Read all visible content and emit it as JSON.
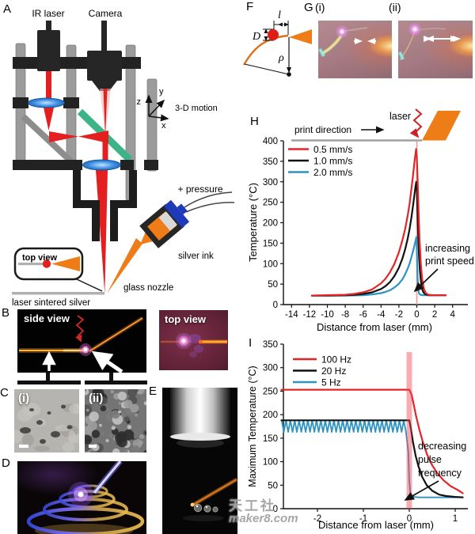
{
  "panels": {
    "A": {
      "label": "A",
      "ir_laser": "IR laser",
      "camera": "Camera",
      "motion_label": "3-D motion",
      "axes": {
        "x": "x",
        "y": "y",
        "z": "z"
      },
      "pressure": "+ pressure",
      "silver_ink": "silver ink",
      "glass_nozzle": "glass nozzle",
      "inset_title": "top view",
      "substrate": "laser sintered silver"
    },
    "B": {
      "label": "B",
      "side_view_title": "side view",
      "top_view_title": "top view"
    },
    "C": {
      "label": "C",
      "i": "(i)",
      "ii": "(ii)"
    },
    "D": {
      "label": "D"
    },
    "E": {
      "label": "E"
    },
    "F": {
      "label": "F",
      "dims": {
        "l": "l",
        "D": "D",
        "rho": "ρ"
      }
    },
    "G": {
      "label": "G",
      "i": "(i)",
      "ii": "(ii)"
    },
    "H": {
      "label": "H"
    },
    "I": {
      "label": "I"
    }
  },
  "watermark": {
    "line1": "天工社",
    "line2": "maker8.com"
  },
  "chart_data": [
    {
      "id": "H",
      "type": "line",
      "xlabel": "Distance from laser (mm)",
      "ylabel": "Temperature (°C)",
      "xlim": [
        -14.9,
        5.4
      ],
      "ylim": [
        0,
        400
      ],
      "xticks": [
        -14,
        -12,
        -10,
        -8,
        -6,
        -4,
        -2,
        0,
        2,
        4
      ],
      "yticks": [
        0,
        50,
        100,
        150,
        200,
        250,
        300,
        350,
        400
      ],
      "grid": false,
      "legend_position": "upper-left",
      "laser_line_x": 0,
      "decorations": {
        "print_direction": "print direction",
        "laser": "laser"
      },
      "note_lines": [
        "increasing",
        "print speed"
      ],
      "baseline_temp_C": 22,
      "series": [
        {
          "name": "2.0 mm/s",
          "color": "#2e93c0",
          "points": [
            [
              -11.8,
              22
            ],
            [
              -10,
              22
            ],
            [
              -8,
              22
            ],
            [
              -6,
              23
            ],
            [
              -5,
              25
            ],
            [
              -4,
              28
            ],
            [
              -3.5,
              31
            ],
            [
              -3,
              35
            ],
            [
              -2.5,
              42
            ],
            [
              -2,
              51
            ],
            [
              -1.6,
              62
            ],
            [
              -1.3,
              74
            ],
            [
              -1,
              89
            ],
            [
              -0.8,
              101
            ],
            [
              -0.6,
              116
            ],
            [
              -0.45,
              128
            ],
            [
              -0.3,
              141
            ],
            [
              -0.15,
              155
            ],
            [
              -0.04,
              165
            ],
            [
              0.02,
              120
            ],
            [
              0.08,
              70
            ],
            [
              0.15,
              40
            ],
            [
              0.25,
              27
            ],
            [
              0.4,
              24
            ],
            [
              0.7,
              23
            ],
            [
              1.2,
              23
            ],
            [
              2,
              23
            ],
            [
              3.3,
              23
            ]
          ]
        },
        {
          "name": "1.0 mm/s",
          "color": "#111111",
          "points": [
            [
              -11.8,
              22
            ],
            [
              -10,
              22
            ],
            [
              -8,
              23
            ],
            [
              -7,
              24
            ],
            [
              -6,
              26
            ],
            [
              -5,
              30
            ],
            [
              -4,
              38
            ],
            [
              -3.5,
              45
            ],
            [
              -3,
              55
            ],
            [
              -2.5,
              70
            ],
            [
              -2,
              90
            ],
            [
              -1.6,
              113
            ],
            [
              -1.3,
              135
            ],
            [
              -1,
              163
            ],
            [
              -0.8,
              186
            ],
            [
              -0.6,
              213
            ],
            [
              -0.45,
              237
            ],
            [
              -0.3,
              262
            ],
            [
              -0.15,
              288
            ],
            [
              -0.06,
              300
            ],
            [
              0,
              284
            ],
            [
              0.08,
              225
            ],
            [
              0.16,
              168
            ],
            [
              0.25,
              118
            ],
            [
              0.35,
              80
            ],
            [
              0.5,
              48
            ],
            [
              0.65,
              34
            ],
            [
              0.8,
              28
            ],
            [
              1,
              25
            ],
            [
              1.3,
              23
            ],
            [
              2,
              23
            ],
            [
              3.3,
              23
            ]
          ]
        },
        {
          "name": "0.5 mm/s",
          "color": "#e32528",
          "points": [
            [
              -11.8,
              22
            ],
            [
              -10,
              23
            ],
            [
              -8,
              24
            ],
            [
              -7,
              26
            ],
            [
              -6,
              30
            ],
            [
              -5,
              37
            ],
            [
              -4,
              52
            ],
            [
              -3.5,
              63
            ],
            [
              -3,
              79
            ],
            [
              -2.5,
              100
            ],
            [
              -2,
              128
            ],
            [
              -1.6,
              158
            ],
            [
              -1.3,
              185
            ],
            [
              -1,
              220
            ],
            [
              -0.8,
              248
            ],
            [
              -0.6,
              283
            ],
            [
              -0.45,
              310
            ],
            [
              -0.3,
              341
            ],
            [
              -0.15,
              368
            ],
            [
              -0.08,
              380
            ],
            [
              0,
              362
            ],
            [
              0.1,
              300
            ],
            [
              0.2,
              222
            ],
            [
              0.3,
              160
            ],
            [
              0.45,
              98
            ],
            [
              0.6,
              62
            ],
            [
              0.8,
              38
            ],
            [
              1,
              28
            ],
            [
              1.3,
              24
            ],
            [
              1.8,
              23
            ],
            [
              2.5,
              23
            ],
            [
              3.3,
              23
            ]
          ]
        }
      ],
      "legend": [
        {
          "label": "0.5 mm/s",
          "color": "#e32528"
        },
        {
          "label": "1.0 mm/s",
          "color": "#111111"
        },
        {
          "label": "2.0 mm/s",
          "color": "#2e93c0"
        }
      ]
    },
    {
      "id": "I",
      "type": "line",
      "xlabel": "Distance from laser (mm)",
      "ylabel": "Maximum Temperature (°C)",
      "xlim": [
        -2.84,
        1.22
      ],
      "ylim": [
        0,
        350
      ],
      "xticks": [
        -2,
        -1,
        0,
        1
      ],
      "yticks": [
        0,
        50,
        100,
        150,
        200,
        250,
        300,
        350
      ],
      "grid": false,
      "legend_position": "upper-left",
      "laser_band": {
        "x0": -0.06,
        "x1": 0.06,
        "top": 333
      },
      "note_lines": [
        "decreasing",
        "pulse",
        "frequency"
      ],
      "series": [
        {
          "name": "5 Hz",
          "color": "#2e93c0",
          "osc": {
            "from": -2.78,
            "to": -0.05,
            "hi": 188,
            "lo": 163,
            "period": 0.095
          },
          "tail": [
            [
              -0.02,
              120
            ],
            [
              0,
              60
            ],
            [
              0.03,
              26
            ],
            [
              0.2,
              24
            ],
            [
              0.7,
              24
            ],
            [
              1.18,
              24
            ]
          ]
        },
        {
          "name": "20 Hz",
          "color": "#111111",
          "points": [
            [
              -2.8,
              188
            ],
            [
              -1.5,
              188
            ],
            [
              0,
              188
            ],
            [
              0.04,
              168
            ],
            [
              0.08,
              142
            ],
            [
              0.14,
              112
            ],
            [
              0.2,
              90
            ],
            [
              0.28,
              68
            ],
            [
              0.38,
              50
            ],
            [
              0.5,
              38
            ],
            [
              0.65,
              30
            ],
            [
              0.8,
              27
            ],
            [
              1,
              25
            ],
            [
              1.18,
              24
            ]
          ]
        },
        {
          "name": "100 Hz",
          "color": "#e32528",
          "points": [
            [
              -2.8,
              253
            ],
            [
              -1.5,
              253
            ],
            [
              0,
              253
            ],
            [
              0.05,
              243
            ],
            [
              0.1,
              220
            ],
            [
              0.15,
              196
            ],
            [
              0.22,
              168
            ],
            [
              0.3,
              140
            ],
            [
              0.4,
              112
            ],
            [
              0.5,
              92
            ],
            [
              0.62,
              74
            ],
            [
              0.75,
              60
            ],
            [
              0.9,
              48
            ],
            [
              1.05,
              40
            ],
            [
              1.18,
              32
            ]
          ]
        }
      ],
      "legend": [
        {
          "label": "100 Hz",
          "color": "#e32528"
        },
        {
          "label": "20 Hz",
          "color": "#111111"
        },
        {
          "label": "5 Hz",
          "color": "#2e93c0"
        }
      ]
    }
  ]
}
